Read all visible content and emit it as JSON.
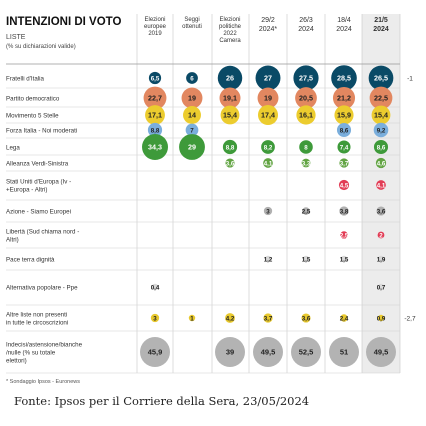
{
  "chart_data": {
    "type": "table",
    "title": "INTENZIONI DI VOTO",
    "subtitle": "LISTE",
    "subtitle2": "(% su dichiarazioni valide)",
    "columns": [
      {
        "label": "Elezioni europee 2019"
      },
      {
        "label": "Seggi ottenuti"
      },
      {
        "label": "Elezioni politiche 2022 Camera"
      },
      {
        "label": "29/2 2024*"
      },
      {
        "label": "26/3 2024"
      },
      {
        "label": "18/4 2024"
      },
      {
        "label": "21/5 2024"
      }
    ],
    "rows": [
      {
        "label": "Fratelli d'Italia",
        "color": "#0a4a66",
        "values": [
          "6,5",
          "6",
          "26",
          "27",
          "27,5",
          "28,5",
          "26,5"
        ],
        "diff": "-1"
      },
      {
        "label": "Partito democratico",
        "color": "#e28760",
        "values": [
          "22,7",
          "19",
          "19,1",
          "19",
          "20,5",
          "21,2",
          "22,5"
        ],
        "diff": ""
      },
      {
        "label": "Movimento 5 Stelle",
        "color": "#eccc2e",
        "values": [
          "17,1",
          "14",
          "15,4",
          "17,4",
          "16,1",
          "15,9",
          "15,4"
        ],
        "diff": ""
      },
      {
        "label": "Forza Italia - Noi moderati",
        "color": "#7aaedc",
        "values": [
          "8,8",
          "7",
          "",
          "",
          "",
          "8,6",
          "9,2"
        ],
        "diff": ""
      },
      {
        "label": "Lega",
        "color": "#3e9a3a",
        "values": [
          "34,3",
          "29",
          "8,8",
          "8,2",
          "8",
          "7,4",
          "8,6"
        ],
        "diff": ""
      },
      {
        "label": "Alleanza Verdi-Sinistra",
        "color": "#62a443",
        "values": [
          "",
          "",
          "3,6",
          "4,1",
          "3,3",
          "3,7",
          "4,6"
        ],
        "diff": ""
      },
      {
        "label": "Stati Uniti d'Europa (Iv - +Europa - Altri)",
        "color": "#e23c55",
        "values": [
          "",
          "",
          "",
          "",
          "",
          "4,5",
          "4,1"
        ],
        "diff": ""
      },
      {
        "label": "Azione - Siamo Europei",
        "color": "#b0b0b0",
        "values": [
          "",
          "",
          "",
          "3",
          "2,5",
          "3,8",
          "3,6"
        ],
        "diff": ""
      },
      {
        "label": "Libertà (Sud chiama nord - Altri)",
        "color": "#e23c55",
        "values": [
          "",
          "",
          "",
          "",
          "",
          "2,5",
          "2"
        ],
        "diff": ""
      },
      {
        "label": "Pace terra dignità",
        "color": "#d9d9d9",
        "values": [
          "",
          "",
          "",
          "1,2",
          "1,5",
          "1,5",
          "1,9"
        ],
        "diff": ""
      },
      {
        "label": "Alternativa popolare - Ppe",
        "color": "#d9d9d9",
        "values": [
          "0,4",
          "",
          "",
          "",
          "",
          "",
          "0,7"
        ],
        "diff": ""
      },
      {
        "label": "Altre liste non presenti in tutte le circoscrizioni",
        "color": "#e8c92e",
        "values": [
          "3",
          "1",
          "4,2",
          "3,7",
          "3,6",
          "2,4",
          "0,9"
        ],
        "diff": "-2,7"
      },
      {
        "label": "Indecisi/astensione/bianche /nulle (% su totale elettori)",
        "color": "#b3b3b3",
        "values": [
          "45,9",
          "",
          "39",
          "49,5",
          "52,5",
          "51",
          "49,5"
        ],
        "diff": ""
      }
    ],
    "footnote": "* Sondaggio Ipsos - Euronews"
  },
  "source": "Fonte: Ipsos per il Corriere della Sera, 23/05/2024"
}
